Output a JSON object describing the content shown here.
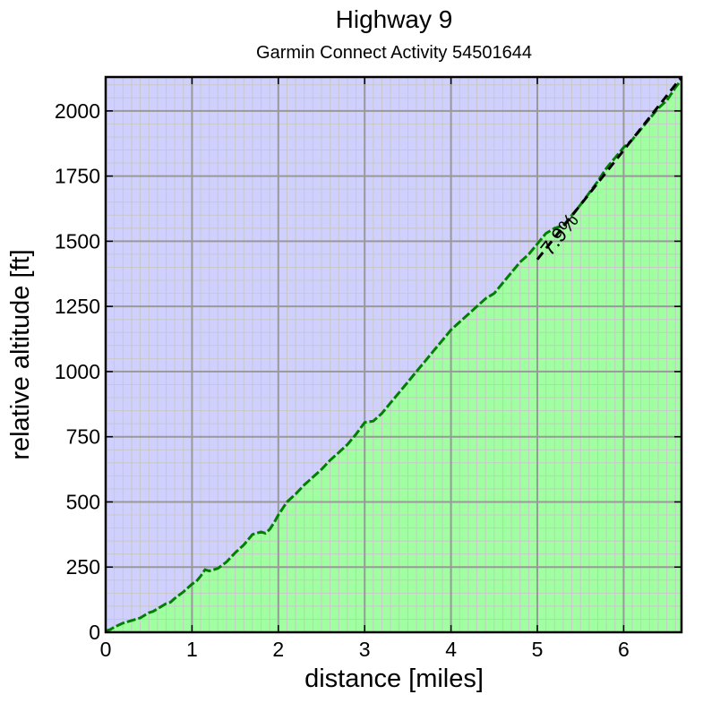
{
  "chart_data": {
    "type": "area",
    "title": "Highway 9",
    "subtitle": "Garmin Connect Activity 54501644",
    "xlabel": "distance [miles]",
    "ylabel": "relative altitude [ft]",
    "xlim": [
      0,
      6.67
    ],
    "ylim": [
      0,
      2130
    ],
    "xticks": [
      0,
      1,
      2,
      3,
      4,
      5,
      6
    ],
    "yticks": [
      0,
      250,
      500,
      750,
      1000,
      1250,
      1500,
      1750,
      2000
    ],
    "grid": true,
    "minor_grid_step": {
      "x": 0.1,
      "y": 50
    },
    "colors": {
      "background": "#d0d0ff",
      "fill": "#a0ffa0",
      "line": "#008000",
      "major_grid": "#999999",
      "minor_grid": "#c8c8c8",
      "trend": "#000000"
    },
    "series": [
      {
        "x": [
          0,
          0.05,
          0.1,
          0.2,
          0.3,
          0.4,
          0.5,
          0.55,
          0.6,
          0.7,
          0.75,
          0.8,
          0.9,
          1.0,
          1.05,
          1.1,
          1.15,
          1.2,
          1.3,
          1.4,
          1.5,
          1.6,
          1.7,
          1.8,
          1.85,
          1.9,
          1.95,
          2.0,
          2.1,
          2.2,
          2.3,
          2.4,
          2.5,
          2.6,
          2.7,
          2.8,
          2.9,
          3.0,
          3.1,
          3.2,
          3.3,
          3.4,
          3.5,
          3.6,
          3.7,
          3.8,
          3.9,
          4.0,
          4.1,
          4.2,
          4.3,
          4.4,
          4.5,
          4.6,
          4.7,
          4.8,
          4.9,
          5.0,
          5.1,
          5.2,
          5.3,
          5.4,
          5.5,
          5.6,
          5.7,
          5.8,
          5.9,
          6.0,
          6.1,
          6.2,
          6.3,
          6.4,
          6.5,
          6.6,
          6.67
        ],
        "y": [
          5,
          10,
          20,
          35,
          45,
          55,
          75,
          80,
          90,
          110,
          115,
          130,
          155,
          185,
          195,
          215,
          240,
          235,
          245,
          270,
          305,
          335,
          375,
          385,
          380,
          395,
          420,
          450,
          500,
          530,
          565,
          595,
          625,
          660,
          690,
          720,
          760,
          805,
          810,
          840,
          880,
          920,
          960,
          1000,
          1040,
          1080,
          1120,
          1160,
          1190,
          1220,
          1250,
          1280,
          1300,
          1340,
          1380,
          1420,
          1450,
          1490,
          1530,
          1550,
          1560,
          1600,
          1640,
          1685,
          1730,
          1780,
          1820,
          1860,
          1890,
          1930,
          1970,
          2010,
          2040,
          2090,
          2120
        ]
      }
    ],
    "trendline": {
      "label": "7.9%",
      "x": [
        5.0,
        6.67
      ],
      "y": [
        1430,
        2130
      ]
    }
  }
}
